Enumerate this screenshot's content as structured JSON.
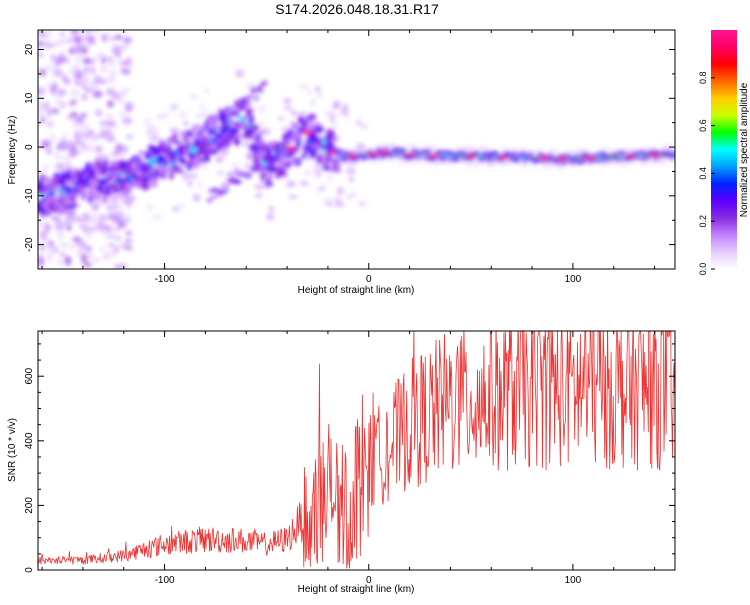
{
  "page_title": "S174.2026.048.18.31.R17",
  "colors": {
    "snr_line": "#ee3333",
    "axis": "#000000",
    "colormap": [
      "#ffffff",
      "#e6ccff",
      "#c080ff",
      "#8a2be2",
      "#5a00ff",
      "#0022ff",
      "#00a0ff",
      "#00ffff",
      "#00ff00",
      "#ccff00",
      "#ffcc00",
      "#ff6600",
      "#ff0000",
      "#ff0066",
      "#ff1493"
    ]
  },
  "chart_data": [
    {
      "type": "heatmap",
      "name": "spectrogram",
      "xlabel": "Height of straight line (km)",
      "ylabel": "Frequency (Hz)",
      "xlim": [
        -162,
        150
      ],
      "ylim": [
        -25,
        24
      ],
      "xticks": [
        -100,
        0,
        100
      ],
      "yticks": [
        -20,
        -10,
        0,
        10,
        20
      ],
      "colorbar": {
        "label": "Normalized spectral amplitude",
        "range": [
          0,
          1
        ],
        "ticks": [
          0.0,
          0.2,
          0.4,
          0.6,
          0.8
        ]
      },
      "ridge": [
        {
          "x": -160,
          "y": -10
        },
        {
          "x": -140,
          "y": -8
        },
        {
          "x": -120,
          "y": -6
        },
        {
          "x": -100,
          "y": -3
        },
        {
          "x": -85,
          "y": 0
        },
        {
          "x": -70,
          "y": 4
        },
        {
          "x": -60,
          "y": 6
        },
        {
          "x": -50,
          "y": -4
        },
        {
          "x": -40,
          "y": -1
        },
        {
          "x": -30,
          "y": 3
        },
        {
          "x": -20,
          "y": -1
        },
        {
          "x": -10,
          "y": -2
        },
        {
          "x": 0,
          "y": -1.5
        },
        {
          "x": 10,
          "y": -1
        },
        {
          "x": 20,
          "y": -1.5
        },
        {
          "x": 40,
          "y": -1.8
        },
        {
          "x": 60,
          "y": -2
        },
        {
          "x": 80,
          "y": -2.2
        },
        {
          "x": 100,
          "y": -2.5
        },
        {
          "x": 120,
          "y": -2
        },
        {
          "x": 150,
          "y": -1.5
        }
      ]
    },
    {
      "type": "line",
      "name": "snr",
      "xlabel": "Height of straight line (km)",
      "ylabel": "SNR (10 * v/v)",
      "xlim": [
        -162,
        150
      ],
      "ylim": [
        0,
        740
      ],
      "xticks": [
        -100,
        0,
        100
      ],
      "yticks": [
        0,
        200,
        400,
        600
      ],
      "envelope": [
        {
          "x": -162,
          "y": 30
        },
        {
          "x": -140,
          "y": 30
        },
        {
          "x": -120,
          "y": 45
        },
        {
          "x": -100,
          "y": 80
        },
        {
          "x": -80,
          "y": 95
        },
        {
          "x": -60,
          "y": 90
        },
        {
          "x": -50,
          "y": 80
        },
        {
          "x": -40,
          "y": 95
        },
        {
          "x": -30,
          "y": 180
        },
        {
          "x": -20,
          "y": 250
        },
        {
          "x": -12,
          "y": 200
        },
        {
          "x": -5,
          "y": 280
        },
        {
          "x": 0,
          "y": 330
        },
        {
          "x": 10,
          "y": 380
        },
        {
          "x": 20,
          "y": 450
        },
        {
          "x": 40,
          "y": 520
        },
        {
          "x": 60,
          "y": 540
        },
        {
          "x": 80,
          "y": 560
        },
        {
          "x": 100,
          "y": 560
        },
        {
          "x": 120,
          "y": 560
        },
        {
          "x": 150,
          "y": 560
        }
      ]
    }
  ]
}
